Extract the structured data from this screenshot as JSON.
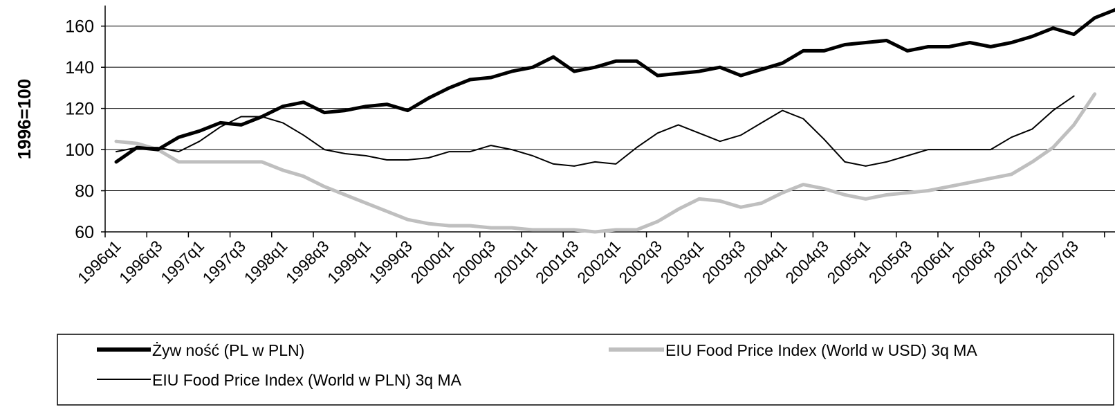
{
  "chart_data": {
    "type": "line",
    "title": "",
    "xlabel": "",
    "ylabel": "1996=100",
    "ylim": [
      60,
      170
    ],
    "yticks": [
      60,
      80,
      100,
      120,
      140,
      160
    ],
    "grid": true,
    "legend_position": "bottom",
    "x_tick_labels": [
      "1996q1",
      "1996q3",
      "1997q1",
      "1997q3",
      "1998q1",
      "1998q3",
      "1999q1",
      "1999q3",
      "2000q1",
      "2000q3",
      "2001q1",
      "2001q3",
      "2002q1",
      "2002q3",
      "2003q1",
      "2003q3",
      "2004q1",
      "2004q3",
      "2005q1",
      "2005q3",
      "2006q1",
      "2006q3",
      "2007q1",
      "2007q3"
    ],
    "x": [
      "1996q1",
      "1996q2",
      "1996q3",
      "1996q4",
      "1997q1",
      "1997q2",
      "1997q3",
      "1997q4",
      "1998q1",
      "1998q2",
      "1998q3",
      "1998q4",
      "1999q1",
      "1999q2",
      "1999q3",
      "1999q4",
      "2000q1",
      "2000q2",
      "2000q3",
      "2000q4",
      "2001q1",
      "2001q2",
      "2001q3",
      "2001q4",
      "2002q1",
      "2002q2",
      "2002q3",
      "2002q4",
      "2003q1",
      "2003q2",
      "2003q3",
      "2003q4",
      "2004q1",
      "2004q2",
      "2004q3",
      "2004q4",
      "2005q1",
      "2005q2",
      "2005q3",
      "2005q4",
      "2006q1",
      "2006q2",
      "2006q3",
      "2006q4",
      "2007q1",
      "2007q2",
      "2007q3",
      "2007q4",
      "2008q1"
    ],
    "series": [
      {
        "name": "Żyw ność (PL w  PLN)",
        "color": "#000000",
        "values": [
          94,
          101,
          100,
          106,
          109,
          113,
          112,
          116,
          121,
          123,
          118,
          119,
          121,
          122,
          119,
          125,
          130,
          134,
          135,
          138,
          140,
          145,
          138,
          140,
          143,
          143,
          136,
          137,
          138,
          140,
          136,
          139,
          142,
          148,
          148,
          151,
          152,
          153,
          148,
          150,
          150,
          152,
          150,
          152,
          155,
          159,
          156,
          164,
          168
        ]
      },
      {
        "name": "EIU Food Price Index  (World w  USD) 3q MA",
        "color": "#bfbfbf",
        "values": [
          104,
          103,
          100,
          94,
          94,
          94,
          94,
          94,
          90,
          87,
          82,
          78,
          74,
          70,
          66,
          64,
          63,
          63,
          62,
          62,
          61,
          61,
          61,
          60,
          61,
          61,
          65,
          71,
          76,
          75,
          72,
          74,
          79,
          83,
          81,
          78,
          76,
          78,
          79,
          80,
          82,
          84,
          86,
          88,
          94,
          101,
          112,
          127,
          null
        ]
      },
      {
        "name": "EIU Food Price Index  (World w  PLN) 3q MA",
        "color": "#000000",
        "values": [
          99,
          101,
          101,
          99,
          104,
          111,
          116,
          116,
          113,
          107,
          100,
          98,
          97,
          95,
          95,
          96,
          99,
          99,
          102,
          100,
          97,
          93,
          92,
          94,
          93,
          101,
          108,
          112,
          108,
          104,
          107,
          113,
          119,
          115,
          105,
          94,
          92,
          94,
          97,
          100,
          100,
          100,
          100,
          106,
          110,
          119,
          126,
          null,
          null
        ]
      }
    ]
  }
}
